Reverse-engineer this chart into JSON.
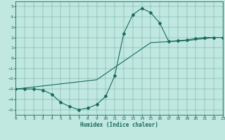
{
  "xlabel": "Humidex (Indice chaleur)",
  "bg_color": "#c0e8e0",
  "line_color": "#1a6b5a",
  "xlim": [
    0,
    23
  ],
  "ylim": [
    -5.5,
    5.5
  ],
  "xticks": [
    0,
    1,
    2,
    3,
    4,
    5,
    6,
    7,
    8,
    9,
    10,
    11,
    12,
    13,
    14,
    15,
    16,
    17,
    18,
    19,
    20,
    21,
    22,
    23
  ],
  "yticks": [
    -5,
    -4,
    -3,
    -2,
    -1,
    0,
    1,
    2,
    3,
    4,
    5
  ],
  "curve_x": [
    0,
    1,
    2,
    3,
    4,
    5,
    6,
    7,
    8,
    9,
    10,
    11,
    12,
    13,
    14,
    15,
    16,
    17,
    18,
    19,
    20,
    21,
    22,
    23
  ],
  "curve_y": [
    -3.0,
    -3.0,
    -3.0,
    -3.1,
    -3.5,
    -4.3,
    -4.7,
    -5.0,
    -4.85,
    -4.5,
    -3.7,
    -1.7,
    2.4,
    4.2,
    4.85,
    4.4,
    3.4,
    1.6,
    1.7,
    1.75,
    1.9,
    2.0,
    2.0,
    2.0
  ],
  "line_x": [
    0,
    1,
    2,
    3,
    4,
    5,
    6,
    7,
    8,
    9,
    10,
    11,
    12,
    13,
    14,
    15,
    16,
    17,
    18,
    19,
    20,
    21,
    22,
    23
  ],
  "line_y": [
    -3.0,
    -2.9,
    -2.8,
    -2.7,
    -2.6,
    -2.5,
    -2.4,
    -2.3,
    -2.2,
    -2.1,
    -1.5,
    -0.9,
    -0.3,
    0.3,
    0.9,
    1.5,
    1.55,
    1.6,
    1.65,
    1.7,
    1.8,
    1.9,
    2.0,
    2.0
  ]
}
